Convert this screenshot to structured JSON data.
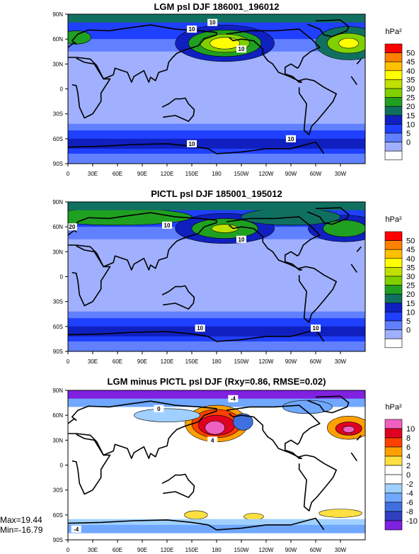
{
  "chart_data": [
    {
      "type": "heatmap",
      "title": "LGM psl DJF 186001_196012",
      "units": "hPa²",
      "x_ticks": [
        "0",
        "30E",
        "60E",
        "90E",
        "120E",
        "150E",
        "180",
        "150W",
        "120W",
        "90W",
        "60W",
        "30W"
      ],
      "y_ticks": [
        "90N",
        "60N",
        "30N",
        "0",
        "30S",
        "60S",
        "90S"
      ],
      "colorbar_labels": [
        "50",
        "45",
        "40",
        "35",
        "30",
        "25",
        "20",
        "15",
        "10",
        "5",
        "0"
      ],
      "colorbar_colors": [
        "#ff0000",
        "#ff8000",
        "#ffc000",
        "#ffff00",
        "#c0e000",
        "#80d000",
        "#20a020",
        "#107060",
        "#1020c0",
        "#2040ff",
        "#6080ff",
        "#a0b0ff",
        "#ffffff"
      ],
      "contour_labels": [
        "10",
        "10",
        "10",
        "10",
        "10"
      ]
    },
    {
      "type": "heatmap",
      "title": "PICTL psl DJF 185001_195012",
      "units": "hPa²",
      "x_ticks": [
        "0",
        "30E",
        "60E",
        "90E",
        "120E",
        "150E",
        "180",
        "150W",
        "120W",
        "90W",
        "60W",
        "30W"
      ],
      "y_ticks": [
        "90N",
        "60N",
        "30N",
        "0",
        "30S",
        "60S",
        "90S"
      ],
      "colorbar_labels": [
        "50",
        "45",
        "40",
        "35",
        "30",
        "25",
        "20",
        "15",
        "10",
        "5",
        "0"
      ],
      "colorbar_colors": [
        "#ff0000",
        "#ff8000",
        "#ffc000",
        "#ffff00",
        "#c0e000",
        "#80d000",
        "#20a020",
        "#107060",
        "#1020c0",
        "#2040ff",
        "#6080ff",
        "#a0b0ff",
        "#ffffff"
      ],
      "contour_labels": [
        "20",
        "10",
        "10",
        "10",
        "10"
      ]
    },
    {
      "type": "heatmap",
      "title": "LGM minus PICTL psl DJF (Rxy=0.86, RMSE=0.02)",
      "units": "hPa²",
      "x_ticks": [
        "0",
        "30E",
        "60E",
        "90E",
        "120E",
        "150E",
        "180",
        "150W",
        "120W",
        "90W",
        "60W",
        "30W"
      ],
      "y_ticks": [
        "90N",
        "60N",
        "30N",
        "0",
        "30S",
        "60S",
        "90S"
      ],
      "colorbar_labels": [
        "10",
        "8",
        "6",
        "4",
        "2",
        "0",
        "-2",
        "-4",
        "-6",
        "-8",
        "-10"
      ],
      "colorbar_colors": [
        "#f060c0",
        "#e00020",
        "#ff4000",
        "#ffa000",
        "#ffe040",
        "#ffffff",
        "#ffffff",
        "#a0d0ff",
        "#70a8ff",
        "#4070e0",
        "#3040c0",
        "#8020e0"
      ],
      "contour_labels": [
        "0",
        "-4",
        "4",
        "-4"
      ],
      "max_label": "Max=19.44",
      "min_label": "Min=-16.79"
    }
  ]
}
